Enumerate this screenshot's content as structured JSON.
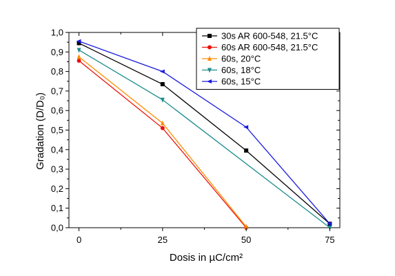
{
  "chart_data": {
    "type": "line",
    "xlabel": "Dosis in µC/cm²",
    "ylabel": "Gradation (D/D₀)",
    "xticks": [
      "0",
      "25",
      "50",
      "75"
    ],
    "yticks": [
      "0,0",
      "0,1",
      "0,2",
      "0,3",
      "0,4",
      "0,5",
      "0,6",
      "0,7",
      "0,8",
      "0,9",
      "1,0"
    ],
    "xlim": [
      -3,
      78
    ],
    "ylim": [
      0,
      1.0
    ],
    "legend_position": "top-right",
    "series": [
      {
        "name": "30s AR 600-548, 21.5°C",
        "color": "#000000",
        "marker": "square",
        "x": [
          0,
          25,
          50,
          75
        ],
        "y": [
          0.945,
          0.735,
          0.395,
          0.02
        ]
      },
      {
        "name": "60s AR 600-548, 21.5°C",
        "color": "#e8120c",
        "marker": "circle",
        "x": [
          0,
          25,
          50
        ],
        "y": [
          0.855,
          0.51,
          0.0
        ]
      },
      {
        "name": "60s, 20°C",
        "color": "#ff8c00",
        "marker": "triangle-up",
        "x": [
          0,
          25,
          50
        ],
        "y": [
          0.875,
          0.535,
          0.005
        ]
      },
      {
        "name": "60s, 18°C",
        "color": "#1a8c8c",
        "marker": "triangle-down",
        "x": [
          0,
          25,
          75
        ],
        "y": [
          0.91,
          0.655,
          0.0
        ],
        "note_hidden": false
      },
      {
        "name": "60s, 15°C",
        "color": "#1a1adf",
        "marker": "triangle-left",
        "x": [
          0,
          25,
          50,
          75
        ],
        "y": [
          0.955,
          0.8,
          0.515,
          0.02
        ]
      }
    ]
  }
}
